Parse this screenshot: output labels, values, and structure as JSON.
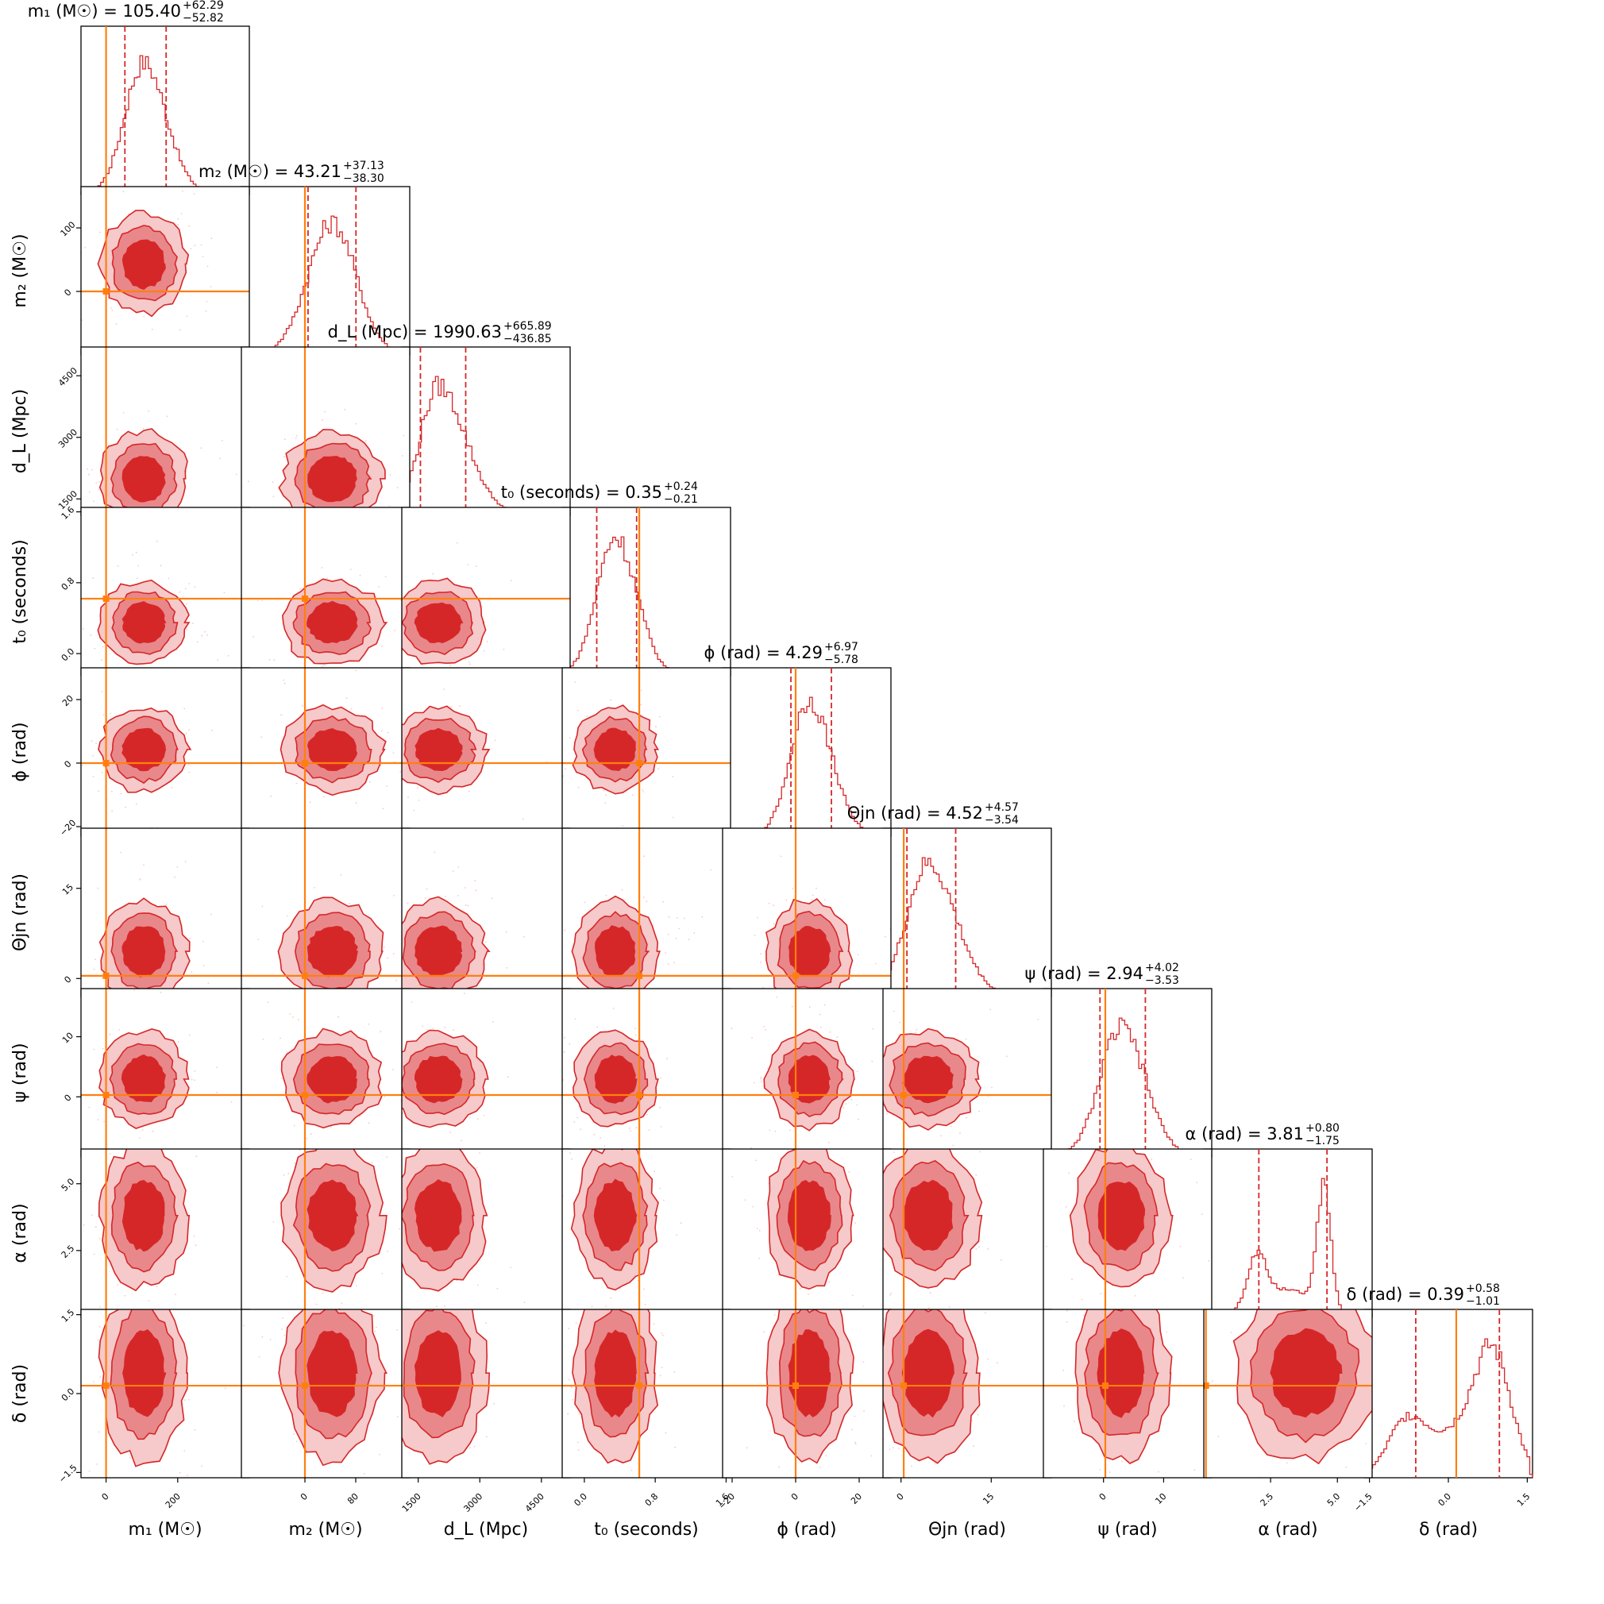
{
  "chart_data": {
    "type": "corner",
    "colors": {
      "posterior": "#d62728",
      "posterior_mid": "#e8888b",
      "posterior_light": "#f6c9ca",
      "truth": "#ff7f0e",
      "frame": "#000000"
    },
    "credible_interval_style": "dashed",
    "parameters": [
      {
        "id": "m1",
        "label": "m₁ (M☉)",
        "title": "m₁ (M☉) = 105.40",
        "plus": "+62.29",
        "minus": "−52.82",
        "median": 105.4,
        "lo": 52.58,
        "hi": 167.69,
        "truth": 0,
        "range": [
          -70,
          400
        ],
        "ticks": [
          0,
          200
        ],
        "tick_labels": [
          "0",
          "200"
        ]
      },
      {
        "id": "m2",
        "label": "m₂ (M☉)",
        "title": "m₂ (M☉) = 43.21",
        "plus": "+37.13",
        "minus": "−38.30",
        "median": 43.21,
        "lo": 4.91,
        "hi": 80.34,
        "truth": 0,
        "range": [
          -100,
          165
        ],
        "ticks": [
          0,
          80
        ],
        "tick_labels": [
          "0",
          "80"
        ],
        "ylabels": [
          "0",
          "100"
        ],
        "yticks": [
          0,
          100
        ]
      },
      {
        "id": "dL",
        "label": "d_L (Mpc)",
        "title": "d_L (Mpc) = 1990.63",
        "plus": "+665.89",
        "minus": "−436.85",
        "median": 1990.63,
        "lo": 1553.78,
        "hi": 2656.52,
        "truth": null,
        "range": [
          1100,
          5200
        ],
        "ticks": [
          1500,
          3000,
          4500
        ],
        "tick_labels": [
          "1500",
          "3000",
          "4500"
        ]
      },
      {
        "id": "t0",
        "label": "t₀ (seconds)",
        "title": "t₀ (seconds) = 0.35",
        "plus": "+0.24",
        "minus": "−0.21",
        "median": 0.35,
        "lo": 0.14,
        "hi": 0.59,
        "truth": 0.62,
        "range": [
          -0.25,
          1.65
        ],
        "ticks": [
          0.0,
          0.8,
          1.6
        ],
        "tick_labels": [
          "0.0",
          "0.8",
          "1.6"
        ]
      },
      {
        "id": "phi",
        "label": "ϕ (rad)",
        "title": "ϕ (rad) = 4.29",
        "plus": "+6.97",
        "minus": "−5.78",
        "median": 4.29,
        "lo": -1.49,
        "hi": 11.26,
        "truth": 0,
        "range": [
          -23,
          30
        ],
        "ticks": [
          -20,
          0,
          20
        ],
        "tick_labels": [
          "−20",
          "0",
          "20"
        ]
      },
      {
        "id": "theta",
        "label": "Θjn (rad)",
        "title": "Θjn (rad) = 4.52",
        "plus": "+4.57",
        "minus": "−3.54",
        "median": 4.52,
        "lo": 0.98,
        "hi": 9.09,
        "truth": 0.45,
        "range": [
          -3,
          25
        ],
        "ticks": [
          0,
          15
        ],
        "tick_labels": [
          "0",
          "15"
        ]
      },
      {
        "id": "psi",
        "label": "ψ (rad)",
        "title": "ψ (rad) = 2.94",
        "plus": "+4.02",
        "minus": "−3.53",
        "median": 2.94,
        "lo": -0.59,
        "hi": 6.96,
        "truth": 0.3,
        "range": [
          -10,
          18
        ],
        "ticks": [
          0,
          10
        ],
        "tick_labels": [
          "0",
          "10"
        ]
      },
      {
        "id": "alpha",
        "label": "α (rad)",
        "title": "α (rad) = 3.81",
        "plus": "+0.80",
        "minus": "−1.75",
        "median": 3.81,
        "lo": 2.06,
        "hi": 4.61,
        "truth": 0.08,
        "range": [
          0,
          6.3
        ],
        "ticks": [
          2.5,
          5.0
        ],
        "tick_labels": [
          "2.5",
          "5.0"
        ]
      },
      {
        "id": "delta",
        "label": "δ (rad)",
        "title": "δ (rad) = 0.39",
        "plus": "+0.58",
        "minus": "−1.01",
        "median": 0.39,
        "lo": -0.62,
        "hi": 0.97,
        "truth": 0.15,
        "range": [
          -1.6,
          1.6
        ],
        "ticks": [
          -1.5,
          0.0,
          1.5
        ],
        "tick_labels": [
          "−1.5",
          "0.0",
          "1.5"
        ]
      }
    ]
  }
}
